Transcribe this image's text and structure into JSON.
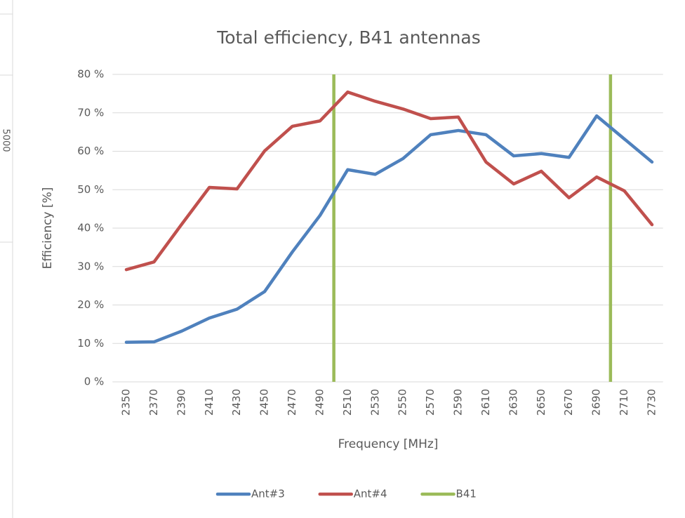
{
  "chart_data": {
    "type": "line",
    "title": "Total efficiency, B41 antennas",
    "xlabel": "Frequency [MHz]",
    "ylabel": "Efficiency [%]",
    "categories": [
      "2350",
      "2370",
      "2390",
      "2410",
      "2430",
      "2450",
      "2470",
      "2490",
      "2510",
      "2530",
      "2550",
      "2570",
      "2590",
      "2610",
      "2630",
      "2650",
      "2670",
      "2690",
      "2710",
      "2730"
    ],
    "series": [
      {
        "name": "Ant#3",
        "color": "#4f81bd",
        "values": [
          10.3,
          10.4,
          13.2,
          16.6,
          18.9,
          23.5,
          33.8,
          43.3,
          55.2,
          54.0,
          58.1,
          64.3,
          65.4,
          64.3,
          58.8,
          59.4,
          58.4,
          69.2,
          63.2,
          57.2
        ]
      },
      {
        "name": "Ant#4",
        "color": "#c0504d",
        "values": [
          29.2,
          31.2,
          41.0,
          50.6,
          50.2,
          60.1,
          66.5,
          67.9,
          75.4,
          73.0,
          71.0,
          68.5,
          68.9,
          57.2,
          51.5,
          54.8,
          47.9,
          53.3,
          49.7,
          40.9
        ]
      }
    ],
    "band_lines": {
      "name": "B41",
      "color": "#9bbb59",
      "x": [
        2500,
        2700
      ]
    },
    "ylim": [
      0,
      80
    ],
    "yticks": [
      {
        "value": 0,
        "label": "0 %"
      },
      {
        "value": 10,
        "label": "10 %"
      },
      {
        "value": 20,
        "label": "20 %"
      },
      {
        "value": 30,
        "label": "30 %"
      },
      {
        "value": 40,
        "label": "40 %"
      },
      {
        "value": 50,
        "label": "50 %"
      },
      {
        "value": 60,
        "label": "60 %"
      },
      {
        "value": 70,
        "label": "70 %"
      },
      {
        "value": 80,
        "label": "80 %"
      }
    ],
    "grid": true,
    "legend": "bottom"
  },
  "background": {
    "text": "5000"
  }
}
